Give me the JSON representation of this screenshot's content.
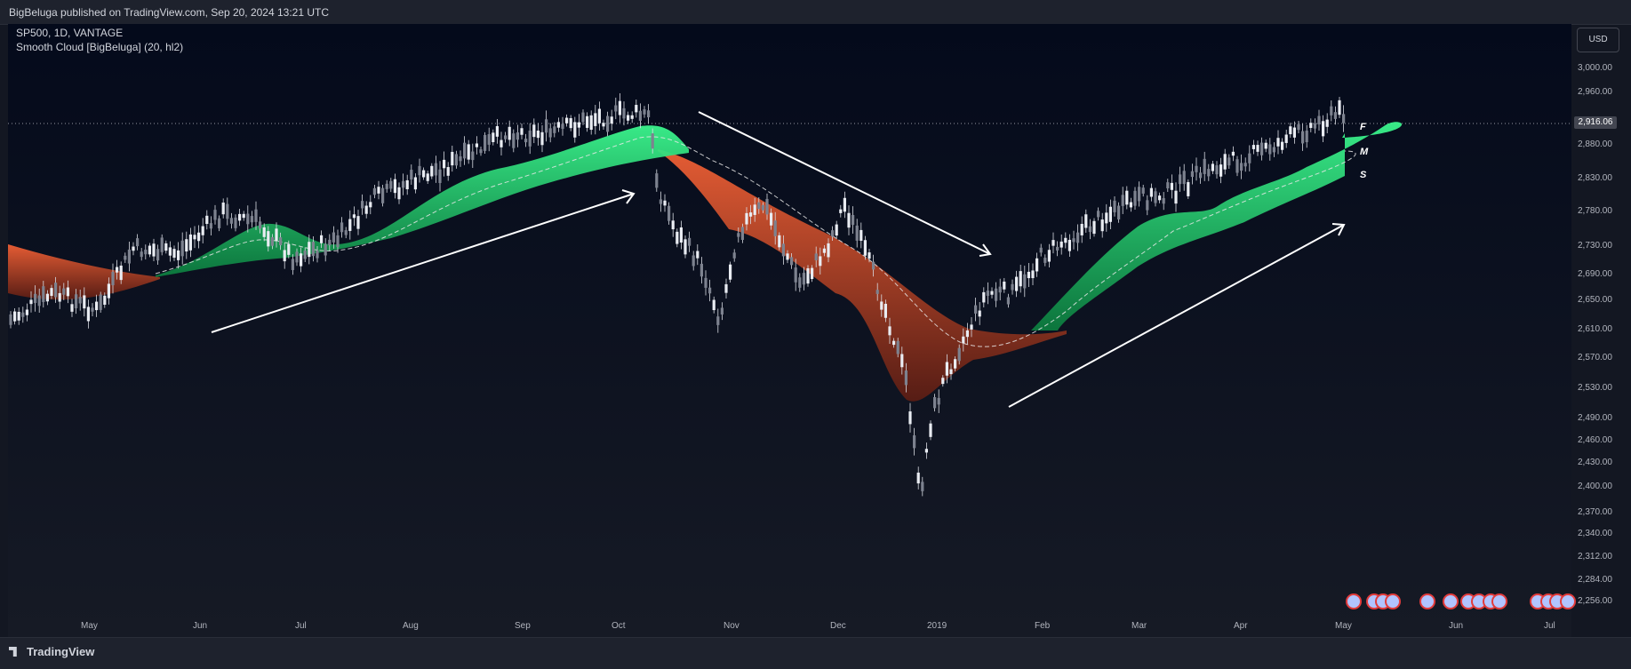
{
  "header": {
    "published_text": "BigBeluga published on TradingView.com, Sep 20, 2024 13:21 UTC"
  },
  "chart": {
    "symbol_line": "SP500, 1D, VANTAGE",
    "indicator_line": "Smooth Cloud [BigBeluga] (20, hl2)",
    "currency_button": "USD",
    "current_price": "2,916.06",
    "line_labels": [
      "F",
      "M",
      "S"
    ],
    "price_axis": [
      "3,000.00",
      "2,960.00",
      "2,880.00",
      "2,830.00",
      "2,780.00",
      "2,730.00",
      "2,690.00",
      "2,650.00",
      "2,610.00",
      "2,570.00",
      "2,530.00",
      "2,490.00",
      "2,460.00",
      "2,430.00",
      "2,400.00",
      "2,370.00",
      "2,340.00",
      "2,312.00",
      "2,284.00",
      "2,256.00"
    ],
    "time_axis": [
      "May",
      "Jun",
      "Jul",
      "Aug",
      "Sep",
      "Oct",
      "Nov",
      "Dec",
      "2019",
      "Feb",
      "Mar",
      "Apr",
      "May",
      "Jun",
      "Jul"
    ],
    "colors": {
      "bull": "#2fe07e",
      "bear": "#e2562f",
      "candle": "#d8dbe2",
      "arrow": "#ffffff",
      "background": "#131722"
    },
    "event_icons": "us-flag-icon"
  },
  "footer": {
    "brand": "TradingView"
  }
}
